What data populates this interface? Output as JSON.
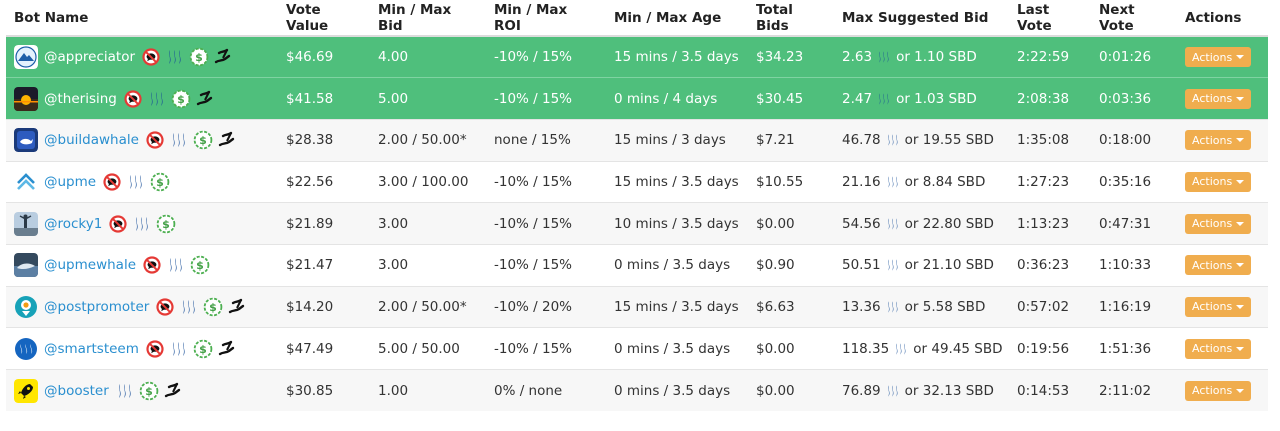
{
  "columns": [
    "Bot Name",
    "Vote Value",
    "Min / Max Bid",
    "Min / Max ROI",
    "Min / Max Age",
    "Total Bids",
    "Max Suggested Bid",
    "Last Vote",
    "Next Vote",
    "Actions"
  ],
  "colors": {
    "highlight": "#4fbf7c",
    "link": "#2a8fcf",
    "actions_button": "#f0ad4e",
    "odd_row": "#f7f7f7"
  },
  "rows": [
    {
      "name": "@appreciator",
      "highlight": true,
      "avatar": "mountain-logo",
      "icons": [
        "no-comment-icon",
        "steem-icon",
        "dollar-icon",
        "refund-hand-icon"
      ],
      "vote_value": "$46.69",
      "bid": "4.00",
      "roi": "-10% / 15%",
      "age": "15 mins / 3.5 days",
      "total_bids": "$34.23",
      "max_bid_steem": "2.63",
      "max_bid_sbd": "or 1.10 SBD",
      "last_vote": "2:22:59",
      "next_vote": "0:01:26",
      "actions": "Actions"
    },
    {
      "name": "@therising",
      "highlight": true,
      "avatar": "sunrise-logo",
      "icons": [
        "no-comment-icon",
        "steem-icon",
        "dollar-icon",
        "refund-hand-icon"
      ],
      "vote_value": "$41.58",
      "bid": "5.00",
      "roi": "-10% / 15%",
      "age": "0 mins / 4 days",
      "total_bids": "$30.45",
      "max_bid_steem": "2.47",
      "max_bid_sbd": "or 1.03 SBD",
      "last_vote": "2:08:38",
      "next_vote": "0:03:36",
      "actions": "Actions"
    },
    {
      "name": "@buildawhale",
      "highlight": false,
      "avatar": "whale-logo",
      "icons": [
        "no-comment-icon",
        "steem-icon",
        "dollar-icon",
        "refund-hand-icon"
      ],
      "vote_value": "$28.38",
      "bid": "2.00 / 50.00*",
      "roi": "none / 15%",
      "age": "15 mins / 3 days",
      "total_bids": "$7.21",
      "max_bid_steem": "46.78",
      "max_bid_sbd": "or 19.55 SBD",
      "last_vote": "1:35:08",
      "next_vote": "0:18:00",
      "actions": "Actions"
    },
    {
      "name": "@upme",
      "highlight": false,
      "avatar": "upme-logo",
      "icons": [
        "no-comment-icon",
        "steem-icon",
        "dollar-icon"
      ],
      "vote_value": "$22.56",
      "bid": "3.00 / 100.00",
      "roi": "-10% / 15%",
      "age": "15 mins / 3.5 days",
      "total_bids": "$10.55",
      "max_bid_steem": "21.16",
      "max_bid_sbd": "or 8.84 SBD",
      "last_vote": "1:27:23",
      "next_vote": "0:35:16",
      "actions": "Actions"
    },
    {
      "name": "@rocky1",
      "highlight": false,
      "avatar": "rocky-logo",
      "icons": [
        "no-comment-icon",
        "steem-icon",
        "dollar-icon"
      ],
      "vote_value": "$21.89",
      "bid": "3.00",
      "roi": "-10% / 15%",
      "age": "10 mins / 3.5 days",
      "total_bids": "$0.00",
      "max_bid_steem": "54.56",
      "max_bid_sbd": "or 22.80 SBD",
      "last_vote": "1:13:23",
      "next_vote": "0:47:31",
      "actions": "Actions"
    },
    {
      "name": "@upmewhale",
      "highlight": false,
      "avatar": "upmewhale-logo",
      "icons": [
        "no-comment-icon",
        "steem-icon",
        "dollar-icon"
      ],
      "vote_value": "$21.47",
      "bid": "3.00",
      "roi": "-10% / 15%",
      "age": "0 mins / 3.5 days",
      "total_bids": "$0.90",
      "max_bid_steem": "50.51",
      "max_bid_sbd": "or 21.10 SBD",
      "last_vote": "0:36:23",
      "next_vote": "1:10:33",
      "actions": "Actions"
    },
    {
      "name": "@postpromoter",
      "highlight": false,
      "avatar": "postpromoter-logo",
      "icons": [
        "no-comment-icon",
        "steem-icon",
        "dollar-icon",
        "refund-hand-icon"
      ],
      "vote_value": "$14.20",
      "bid": "2.00 / 50.00*",
      "roi": "-10% / 20%",
      "age": "15 mins / 3.5 days",
      "total_bids": "$6.63",
      "max_bid_steem": "13.36",
      "max_bid_sbd": "or 5.58 SBD",
      "last_vote": "0:57:02",
      "next_vote": "1:16:19",
      "actions": "Actions"
    },
    {
      "name": "@smartsteem",
      "highlight": false,
      "avatar": "smartsteem-logo",
      "icons": [
        "no-comment-icon",
        "steem-icon",
        "dollar-icon",
        "refund-hand-icon"
      ],
      "vote_value": "$47.49",
      "bid": "5.00 / 50.00",
      "roi": "-10% / 15%",
      "age": "0 mins / 3.5 days",
      "total_bids": "$0.00",
      "max_bid_steem": "118.35",
      "max_bid_sbd": "or 49.45 SBD",
      "last_vote": "0:19:56",
      "next_vote": "1:51:36",
      "actions": "Actions"
    },
    {
      "name": "@booster",
      "highlight": false,
      "avatar": "rocket-logo",
      "icons": [
        "steem-icon",
        "dollar-icon",
        "refund-hand-icon"
      ],
      "vote_value": "$30.85",
      "bid": "1.00",
      "roi": "0% / none",
      "age": "0 mins / 3.5 days",
      "total_bids": "$0.00",
      "max_bid_steem": "76.89",
      "max_bid_sbd": "or 32.13 SBD",
      "last_vote": "0:14:53",
      "next_vote": "2:11:02",
      "actions": "Actions"
    }
  ]
}
